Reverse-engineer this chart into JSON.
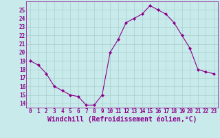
{
  "x": [
    0,
    1,
    2,
    3,
    4,
    5,
    6,
    7,
    8,
    9,
    10,
    11,
    12,
    13,
    14,
    15,
    16,
    17,
    18,
    19,
    20,
    21,
    22,
    23
  ],
  "y": [
    19,
    18.5,
    17.5,
    16,
    15.5,
    15,
    14.8,
    13.8,
    13.8,
    15,
    20,
    21.5,
    23.5,
    24,
    24.5,
    25.5,
    25,
    24.5,
    23.5,
    22,
    20.5,
    18,
    17.7,
    17.5
  ],
  "line_color": "#8B008B",
  "marker": "D",
  "marker_size": 2,
  "bg_color": "#c8eaea",
  "grid_color": "#a8d0d0",
  "xlabel": "Windchill (Refroidissement éolien,°C)",
  "xlabel_color": "#8B008B",
  "xlim": [
    -0.5,
    23.5
  ],
  "ylim": [
    13.5,
    26
  ],
  "yticks": [
    14,
    15,
    16,
    17,
    18,
    19,
    20,
    21,
    22,
    23,
    24,
    25
  ],
  "xticks": [
    0,
    1,
    2,
    3,
    4,
    5,
    6,
    7,
    8,
    9,
    10,
    11,
    12,
    13,
    14,
    15,
    16,
    17,
    18,
    19,
    20,
    21,
    22,
    23
  ],
  "tick_color": "#8B008B",
  "tick_fontsize": 5.5,
  "xlabel_fontsize": 7,
  "axis_color": "#8B008B",
  "linewidth": 0.8
}
